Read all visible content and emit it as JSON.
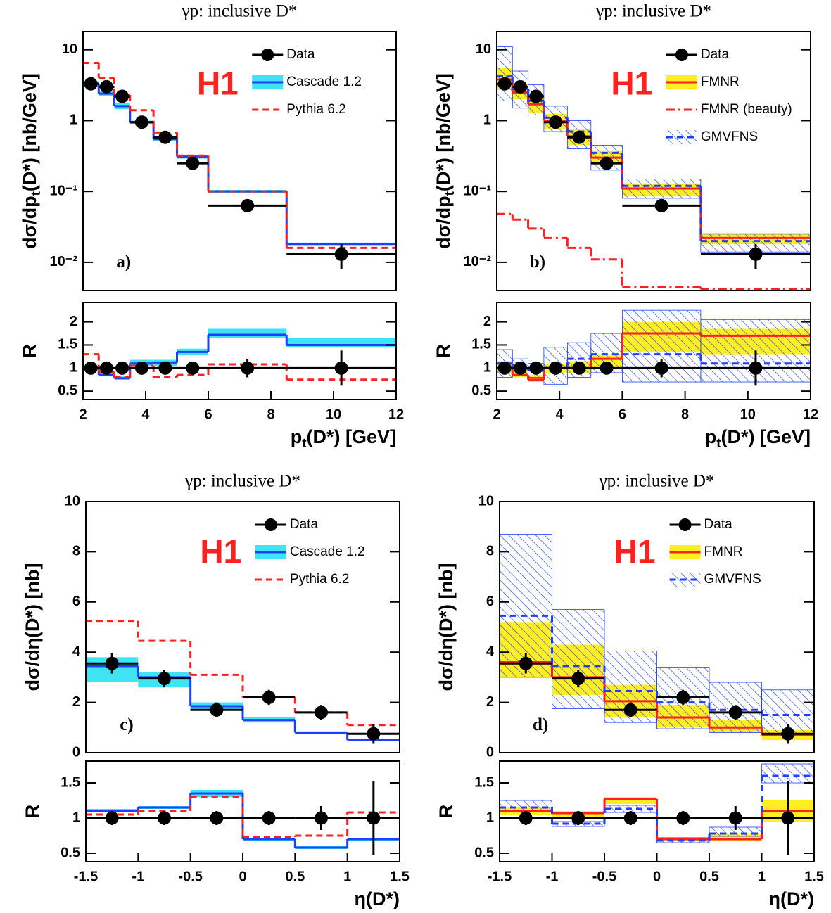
{
  "chart_data": [
    {
      "type": "histogram",
      "title": "γp:  inclusive D*",
      "log_y": true,
      "xlim": [
        2,
        12
      ],
      "ylim": [
        0.004,
        18
      ],
      "yticks": [
        {
          "value": 0.01,
          "label": "10⁻²"
        },
        {
          "value": 0.1,
          "label": "10⁻¹"
        },
        1,
        10
      ],
      "ylabel": [
        "dσ/dp",
        "t",
        "(D*)  [nb/GeV]"
      ],
      "bins": [
        2,
        2.5,
        3,
        3.5,
        4.25,
        5,
        6,
        8.5,
        12
      ],
      "legend": "upper right",
      "annotations": [
        "H1",
        "a)"
      ],
      "series": [
        {
          "name": "Data",
          "color": "#000000",
          "style": "points",
          "values": [
            3.3,
            3.0,
            2.2,
            0.95,
            0.58,
            0.25,
            0.063,
            0.013
          ],
          "errors": [
            0.4,
            0.3,
            0.25,
            0.1,
            0.07,
            0.035,
            0.012,
            0.005
          ]
        },
        {
          "name": "Cascade 1.2",
          "color": "#1f3fff",
          "style": "solid",
          "band_style": "fill",
          "band_color": "#3ee4f4",
          "values": [
            3.3,
            2.4,
            1.6,
            0.95,
            0.55,
            0.31,
            0.1,
            0.018
          ],
          "band_low": [
            3.0,
            2.2,
            1.45,
            0.9,
            0.52,
            0.29,
            0.095,
            0.017
          ],
          "band_high": [
            3.6,
            2.6,
            1.75,
            1.0,
            0.58,
            0.33,
            0.105,
            0.019
          ]
        },
        {
          "name": "Pythia 6.2",
          "color": "#ff2020",
          "style": "dashed",
          "values": [
            6.5,
            4.0,
            2.3,
            1.4,
            0.68,
            0.32,
            0.1,
            0.016
          ]
        }
      ]
    },
    {
      "type": "histogram",
      "xlim": [
        2,
        12
      ],
      "ylim": [
        0.32,
        2.42
      ],
      "yticks": [
        0.5,
        1,
        1.5,
        2
      ],
      "xticks": [
        2,
        4,
        6,
        8,
        10,
        12
      ],
      "ylabel": [
        "R"
      ],
      "xlabel": [
        "p",
        "t",
        "(D*) [GeV]"
      ],
      "bins": [
        2,
        2.5,
        3,
        3.5,
        4.25,
        5,
        6,
        8.5,
        12
      ],
      "series": [
        {
          "color": "#000000",
          "style": "points",
          "values": [
            1,
            1,
            1,
            1,
            1,
            1,
            1,
            1
          ],
          "errors": [
            0.1,
            0.08,
            0.08,
            0.07,
            0.08,
            0.12,
            0.2,
            0.38
          ]
        },
        {
          "color": "#1f3fff",
          "style": "solid",
          "band_style": "fill",
          "band_color": "#3ee4f4",
          "values": [
            1.0,
            0.85,
            0.78,
            1.1,
            1.12,
            1.35,
            1.72,
            1.5
          ],
          "band_low": [
            0.97,
            0.82,
            0.75,
            1.05,
            1.05,
            1.28,
            1.65,
            1.45
          ],
          "band_high": [
            1.05,
            0.9,
            0.82,
            1.18,
            1.18,
            1.42,
            1.85,
            1.65
          ]
        },
        {
          "color": "#ff2020",
          "style": "dashed",
          "values": [
            1.3,
            0.92,
            0.8,
            1.05,
            0.8,
            0.85,
            1.08,
            0.75
          ]
        }
      ]
    },
    {
      "type": "histogram",
      "title": "γp:  inclusive D*",
      "log_y": true,
      "xlim": [
        2,
        12
      ],
      "ylim": [
        0.004,
        18
      ],
      "yticks": [
        {
          "value": 0.01,
          "label": "10⁻²"
        },
        {
          "value": 0.1,
          "label": "10⁻¹"
        },
        1,
        10
      ],
      "ylabel": [
        "dσ/dp",
        "t",
        "(D*)  [nb/GeV]"
      ],
      "bins": [
        2,
        2.5,
        3,
        3.5,
        4.25,
        5,
        6,
        8.5,
        12
      ],
      "legend": "upper right",
      "annotations": [
        "H1",
        "b)"
      ],
      "series": [
        {
          "name": "Data",
          "color": "#000000",
          "style": "points",
          "values": [
            3.3,
            3.0,
            2.2,
            0.95,
            0.58,
            0.25,
            0.063,
            0.013
          ],
          "errors": [
            0.4,
            0.3,
            0.25,
            0.1,
            0.07,
            0.035,
            0.012,
            0.005
          ]
        },
        {
          "name": "FMNR",
          "color": "#ff2020",
          "style": "solid",
          "band_style": "fill",
          "band_color": "#ffee22",
          "values": [
            3.8,
            2.5,
            1.7,
            1.0,
            0.6,
            0.3,
            0.11,
            0.022
          ],
          "band_low": [
            2.7,
            2.0,
            1.3,
            0.75,
            0.45,
            0.24,
            0.085,
            0.018
          ],
          "band_high": [
            5.5,
            3.3,
            2.2,
            1.25,
            0.75,
            0.38,
            0.13,
            0.026
          ]
        },
        {
          "name": "FMNR (beauty)",
          "color": "#ff2020",
          "style": "dashdot",
          "values": [
            0.048,
            0.04,
            0.03,
            0.022,
            0.016,
            0.011,
            0.0045,
            0.0042
          ]
        },
        {
          "name": "GMVFNS",
          "color": "#1f3fff",
          "style": "dashed",
          "band_style": "hatch",
          "values": [
            4.2,
            2.8,
            1.9,
            1.1,
            0.7,
            0.35,
            0.12,
            0.02
          ],
          "band_low": [
            1.9,
            1.5,
            1.2,
            0.7,
            0.4,
            0.2,
            0.08,
            0.014
          ],
          "band_high": [
            11,
            5,
            3.2,
            1.6,
            1.0,
            0.45,
            0.15,
            0.025
          ]
        }
      ]
    },
    {
      "type": "histogram",
      "xlim": [
        2,
        12
      ],
      "ylim": [
        0.32,
        2.42
      ],
      "yticks": [
        0.5,
        1,
        1.5,
        2
      ],
      "xticks": [
        2,
        4,
        6,
        8,
        10,
        12
      ],
      "ylabel": [
        "R"
      ],
      "xlabel": [
        "p",
        "t",
        "(D*) [GeV]"
      ],
      "bins": [
        2,
        2.5,
        3,
        3.5,
        4.25,
        5,
        6,
        8.5,
        12
      ],
      "series": [
        {
          "color": "#000000",
          "style": "points",
          "values": [
            1,
            1,
            1,
            1,
            1,
            1,
            1,
            1
          ],
          "errors": [
            0.1,
            0.08,
            0.08,
            0.07,
            0.08,
            0.12,
            0.2,
            0.38
          ]
        },
        {
          "color": "#ff2020",
          "style": "solid",
          "band_style": "fill",
          "band_color": "#ffee22",
          "values": [
            1.1,
            0.85,
            0.75,
            1.0,
            1.0,
            1.2,
            1.75,
            1.7
          ],
          "band_low": [
            0.9,
            0.8,
            0.7,
            0.9,
            0.9,
            1.0,
            1.35,
            1.3
          ],
          "band_high": [
            1.15,
            0.95,
            0.85,
            1.1,
            1.15,
            1.3,
            2.0,
            1.85
          ]
        },
        {
          "color": "#1f3fff",
          "style": "dashed",
          "band_style": "hatch",
          "values": [
            1.1,
            1.0,
            0.95,
            1.0,
            1.2,
            1.3,
            1.3,
            1.1
          ],
          "band_low": [
            0.8,
            0.85,
            0.8,
            0.65,
            0.8,
            0.9,
            0.7,
            0.7
          ],
          "band_high": [
            1.4,
            1.2,
            1.1,
            1.45,
            1.55,
            1.75,
            2.25,
            2.05
          ]
        }
      ]
    },
    {
      "type": "histogram",
      "title": "γp:  inclusive D*",
      "xlim": [
        -1.5,
        1.5
      ],
      "ylim": [
        0,
        10
      ],
      "yticks": [
        0,
        2,
        4,
        6,
        8,
        10
      ],
      "ylabel": [
        "dσ/dη(D*) [nb]"
      ],
      "bins": [
        -1.5,
        -1,
        -0.5,
        0,
        0.5,
        1,
        1.5
      ],
      "legend": "upper right",
      "annotations": [
        "H1",
        "c)"
      ],
      "series": [
        {
          "name": "Data",
          "color": "#000000",
          "style": "points",
          "values": [
            3.55,
            2.95,
            1.7,
            2.2,
            1.6,
            0.75
          ],
          "errors": [
            0.4,
            0.35,
            0.3,
            0.3,
            0.3,
            0.4
          ]
        },
        {
          "name": "Cascade 1.2",
          "color": "#1f3fff",
          "style": "solid",
          "band_style": "fill",
          "band_color": "#3ee4f4",
          "values": [
            3.45,
            3.0,
            1.85,
            1.3,
            0.8,
            0.5
          ],
          "band_low": [
            2.8,
            2.6,
            1.7,
            1.2,
            0.75,
            0.45
          ],
          "band_high": [
            3.8,
            3.2,
            2.0,
            1.4,
            0.85,
            0.55
          ]
        },
        {
          "name": "Pythia 6.2",
          "color": "#ff2020",
          "style": "dashed",
          "values": [
            5.25,
            4.45,
            3.1,
            2.2,
            1.6,
            1.1
          ]
        }
      ]
    },
    {
      "type": "histogram",
      "xlim": [
        -1.5,
        1.5
      ],
      "ylim": [
        0.38,
        1.81
      ],
      "yticks": [
        0.5,
        1,
        1.5
      ],
      "xticks": [
        -1.5,
        -1,
        -0.5,
        0,
        0.5,
        1,
        1.5
      ],
      "ylabel": [
        "R"
      ],
      "xlabel": [
        "η(D*)"
      ],
      "bins": [
        -1.5,
        -1,
        -0.5,
        0,
        0.5,
        1,
        1.5
      ],
      "series": [
        {
          "color": "#000000",
          "style": "points",
          "values": [
            1,
            1,
            1,
            1,
            1,
            1
          ],
          "errors": [
            0.1,
            0.1,
            0.1,
            0.1,
            0.17,
            0.53
          ]
        },
        {
          "color": "#1f3fff",
          "style": "solid",
          "band_style": "fill",
          "band_color": "#3ee4f4",
          "values": [
            1.1,
            1.15,
            1.35,
            0.7,
            0.58,
            0.7
          ],
          "band_low": [
            1.08,
            1.13,
            1.3,
            0.68,
            0.56,
            0.68
          ],
          "band_high": [
            1.13,
            1.17,
            1.4,
            0.72,
            0.6,
            0.72
          ]
        },
        {
          "color": "#ff2020",
          "style": "dashed",
          "values": [
            1.05,
            1.1,
            1.3,
            0.73,
            0.75,
            1.08
          ]
        }
      ]
    },
    {
      "type": "histogram",
      "title": "γp:  inclusive D*",
      "xlim": [
        -1.5,
        1.5
      ],
      "ylim": [
        0,
        10
      ],
      "yticks": [
        0,
        2,
        4,
        6,
        8,
        10
      ],
      "ylabel": [
        "dσ/dη(D*) [nb]"
      ],
      "bins": [
        -1.5,
        -1,
        -0.5,
        0,
        0.5,
        1,
        1.5
      ],
      "legend": "upper right",
      "annotations": [
        "H1",
        "d)"
      ],
      "series": [
        {
          "name": "Data",
          "color": "#000000",
          "style": "points",
          "values": [
            3.55,
            2.95,
            1.7,
            2.2,
            1.6,
            0.75
          ],
          "errors": [
            0.4,
            0.35,
            0.3,
            0.3,
            0.3,
            0.4
          ]
        },
        {
          "name": "FMNR",
          "color": "#ff2020",
          "style": "solid",
          "band_style": "fill",
          "band_color": "#ffee22",
          "values": [
            3.6,
            3.0,
            2.05,
            1.4,
            1.0,
            0.7
          ],
          "band_low": [
            3.0,
            2.3,
            1.4,
            1.0,
            0.8,
            0.5
          ],
          "band_high": [
            5.2,
            4.3,
            2.7,
            1.9,
            1.3,
            0.9
          ]
        },
        {
          "name": "GMVFNS",
          "color": "#1f3fff",
          "style": "dashed",
          "band_style": "hatch",
          "values": [
            5.45,
            3.45,
            2.45,
            2.0,
            1.7,
            1.5
          ],
          "band_low": [
            3.0,
            1.75,
            1.2,
            0.95,
            0.8,
            0.7
          ],
          "band_high": [
            8.7,
            5.7,
            4.05,
            3.4,
            2.8,
            2.5
          ]
        }
      ]
    },
    {
      "type": "histogram",
      "xlim": [
        -1.5,
        1.5
      ],
      "ylim": [
        0.38,
        1.81
      ],
      "yticks": [
        0.5,
        1,
        1.5
      ],
      "xticks": [
        -1.5,
        -1,
        -0.5,
        0,
        0.5,
        1,
        1.5
      ],
      "ylabel": [
        "R"
      ],
      "xlabel": [
        "η(D*)"
      ],
      "bins": [
        -1.5,
        -1,
        -0.5,
        0,
        0.5,
        1,
        1.5
      ],
      "series": [
        {
          "color": "#000000",
          "style": "points",
          "values": [
            1,
            1,
            1,
            1,
            1,
            1
          ],
          "errors": [
            0.1,
            0.1,
            0.1,
            0.1,
            0.17,
            0.53
          ]
        },
        {
          "color": "#ff2020",
          "style": "solid",
          "band_style": "fill",
          "band_color": "#ffee22",
          "values": [
            1.1,
            1.07,
            1.27,
            0.7,
            0.7,
            1.1
          ],
          "band_low": [
            1.05,
            1.0,
            1.2,
            0.67,
            0.67,
            0.95
          ],
          "band_high": [
            1.15,
            1.1,
            1.3,
            0.73,
            0.78,
            1.25
          ]
        },
        {
          "color": "#1f3fff",
          "style": "dashed",
          "band_style": "hatch",
          "values": [
            1.15,
            0.92,
            1.13,
            0.68,
            0.78,
            1.6
          ],
          "band_low": [
            1.1,
            0.88,
            1.08,
            0.65,
            0.74,
            1.5
          ],
          "band_high": [
            1.25,
            0.95,
            1.18,
            0.72,
            0.87,
            1.77
          ]
        }
      ]
    }
  ]
}
